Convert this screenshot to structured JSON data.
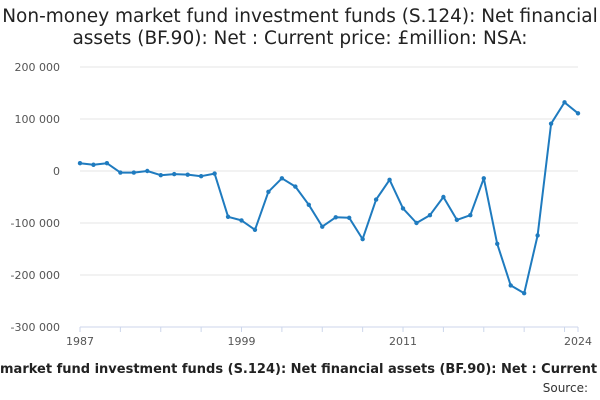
{
  "chart_data": {
    "type": "line",
    "title": "Non-money market fund investment funds (S.124): Net financial assets (BF.90): Net : Current price: £million: NSA:",
    "xlabel": "market fund investment funds (S.124): Net financial assets (BF.90): Net : Current price",
    "ylabel": "",
    "xlim": [
      1987,
      2024
    ],
    "ylim": [
      -300000,
      200000
    ],
    "y_ticks": [
      200000,
      100000,
      0,
      -100000,
      -200000,
      -300000
    ],
    "y_tick_labels": [
      "200 000",
      "100 000",
      "0",
      "-100 000",
      "-200 000",
      "-300 000"
    ],
    "x_ticks": [
      1987,
      1999,
      2011,
      2024
    ],
    "x_tick_labels": [
      "1987",
      "1999",
      "2011",
      "2024"
    ],
    "grid": true,
    "color": "#1f7bbf",
    "series": [
      {
        "x": [
          1987,
          1988,
          1989,
          1990,
          1991,
          1992,
          1993,
          1994,
          1995,
          1996,
          1997,
          1998,
          1999,
          2000,
          2001,
          2002,
          2003,
          2004,
          2005,
          2006,
          2007,
          2008,
          2009,
          2010,
          2011,
          2012,
          2013,
          2014,
          2015,
          2016,
          2017,
          2018,
          2019,
          2020,
          2021,
          2022,
          2023,
          2024
        ],
        "values": [
          15000,
          12000,
          15000,
          -3000,
          -3000,
          0,
          -8000,
          -6000,
          -7000,
          -10000,
          -5000,
          -88000,
          -95000,
          -113000,
          -40000,
          -14000,
          -30000,
          -65000,
          -107000,
          -89000,
          -90000,
          -131000,
          -55000,
          -17000,
          -72000,
          -100000,
          -85000,
          -50000,
          -94000,
          -85000,
          -14000,
          -140000,
          -220000,
          -235000,
          -124000,
          91000,
          132000,
          111000
        ]
      }
    ]
  },
  "footer": {
    "caption": "market fund investment funds (S.124): Net financial assets (BF.90): Net : Current price",
    "source": "Source:"
  }
}
